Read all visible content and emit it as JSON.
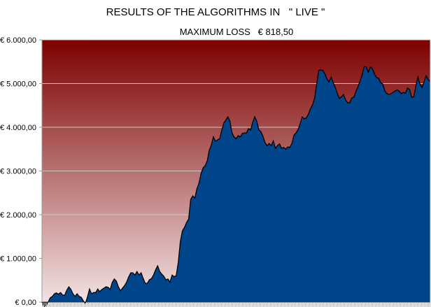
{
  "chart_data": {
    "type": "area",
    "title": "RESULTS OF THE ALGORITHMS IN   \" LIVE \"",
    "subtitle": "MAXIMUM LOSS   € 818,50",
    "xlabel": "",
    "ylabel": "",
    "ylim": [
      0,
      6000
    ],
    "y_ticks": [
      0,
      1000,
      2000,
      3000,
      4000,
      5000,
      6000
    ],
    "y_tick_labels": [
      "€ 0,00",
      "€ 1.000,00",
      "€ 2.000,00",
      "€ 3.000,00",
      "€ 4.000,00",
      "€ 5.000,00",
      "€ 6.000,00"
    ],
    "grid": true,
    "colors": {
      "fill": "#00448a",
      "line": "#000000",
      "bg_top": "#7d0000",
      "bg_bottom": "#f2e2e2",
      "grid": "#c8c8c8"
    },
    "values": [
      0,
      -100,
      -80,
      0,
      100,
      130,
      190,
      210,
      180,
      220,
      160,
      160,
      270,
      350,
      290,
      190,
      130,
      190,
      130,
      110,
      30,
      -30,
      110,
      300,
      190,
      220,
      220,
      300,
      240,
      290,
      320,
      350,
      340,
      290,
      450,
      530,
      480,
      350,
      260,
      320,
      380,
      460,
      580,
      670,
      670,
      620,
      700,
      620,
      670,
      540,
      430,
      430,
      510,
      540,
      620,
      740,
      830,
      700,
      640,
      590,
      510,
      530,
      460,
      620,
      580,
      610,
      910,
      1390,
      1630,
      1710,
      1820,
      1900,
      2350,
      2430,
      2380,
      2590,
      2720,
      2940,
      3070,
      3120,
      3230,
      3470,
      3600,
      3780,
      3680,
      3710,
      3740,
      3920,
      4100,
      4160,
      4240,
      4140,
      3870,
      3780,
      3740,
      3810,
      3780,
      3860,
      3870,
      3870,
      3970,
      3940,
      4110,
      4240,
      4140,
      3940,
      3900,
      3790,
      3650,
      3580,
      3630,
      3580,
      3690,
      3520,
      3580,
      3620,
      3520,
      3540,
      3500,
      3550,
      3540,
      3630,
      3820,
      3870,
      3950,
      4080,
      4240,
      4190,
      4220,
      4300,
      4430,
      4510,
      4670,
      4990,
      5300,
      5310,
      5300,
      5220,
      5100,
      5040,
      5150,
      5020,
      4910,
      4770,
      4660,
      4700,
      4750,
      4620,
      4560,
      4560,
      4670,
      4690,
      4820,
      4930,
      5060,
      5200,
      5390,
      5380,
      5260,
      5380,
      5340,
      5220,
      5140,
      5120,
      5020,
      4990,
      4830,
      4770,
      4750,
      4770,
      4800,
      4830,
      4860,
      4820,
      4770,
      4800,
      4780,
      4900,
      4860,
      4690,
      4700,
      4940,
      5150,
      4990,
      4910,
      5040,
      5180,
      5090,
      5040
    ]
  }
}
